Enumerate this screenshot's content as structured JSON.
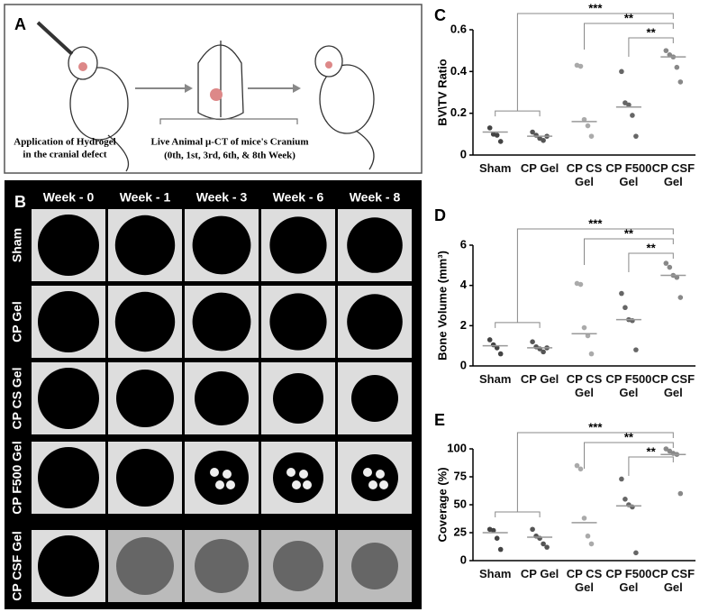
{
  "panel_a": {
    "label": "A",
    "left_caption": [
      "Application of Hydrogel",
      "in the cranial defect"
    ],
    "center_caption": [
      "Live Animal μ-CT of mice's Cranium",
      "(0th, 1st, 3rd, 6th, & 8th Week)"
    ]
  },
  "panel_b": {
    "label": "B",
    "columns": [
      "Week - 0",
      "Week - 1",
      "Week - 3",
      "Week - 6",
      "Week - 8"
    ],
    "rows": [
      "Sham",
      "CP Gel",
      "CP CS Gel",
      "CP F500 Gel",
      "CP CSF Gel"
    ]
  },
  "chart_data": [
    {
      "type": "strip",
      "panel": "C",
      "y_label": "BV\\TV Ratio",
      "categories": [
        "Sham",
        "CP Gel",
        "CP CS Gel",
        "CP F500 Gel",
        "CP CSF Gel"
      ],
      "points": [
        [
          0.13,
          0.1,
          0.095,
          0.065
        ],
        [
          0.11,
          0.095,
          0.08,
          0.07,
          0.09
        ],
        [
          0.43,
          0.425,
          0.17,
          0.14,
          0.09
        ],
        [
          0.4,
          0.25,
          0.24,
          0.19,
          0.09
        ],
        [
          0.5,
          0.48,
          0.47,
          0.42,
          0.35
        ]
      ],
      "medians": [
        0.11,
        0.09,
        0.16,
        0.23,
        0.47
      ],
      "point_colors": [
        "#444444",
        "#555555",
        "#aaaaaa",
        "#666666",
        "#888888"
      ],
      "median_color": "#999999",
      "ylim": [
        0,
        0.6
      ],
      "yticks": [
        0,
        0.2,
        0.4,
        0.6
      ],
      "significance": [
        "***",
        "**",
        "**"
      ]
    },
    {
      "type": "strip",
      "panel": "D",
      "y_label": "Bone Volume (mm³)",
      "categories": [
        "Sham",
        "CP Gel",
        "CP CS Gel",
        "CP F500 Gel",
        "CP CSF Gel"
      ],
      "points": [
        [
          1.3,
          1.05,
          0.9,
          0.6
        ],
        [
          1.2,
          0.95,
          0.85,
          0.7,
          0.9
        ],
        [
          4.1,
          4.05,
          1.9,
          1.5,
          0.6
        ],
        [
          3.6,
          2.9,
          2.3,
          2.25,
          0.8
        ],
        [
          5.1,
          4.9,
          4.5,
          4.4,
          3.4
        ]
      ],
      "medians": [
        1.0,
        0.9,
        1.6,
        2.3,
        4.5
      ],
      "point_colors": [
        "#444444",
        "#555555",
        "#aaaaaa",
        "#666666",
        "#888888"
      ],
      "median_color": "#999999",
      "ylim": [
        0,
        6
      ],
      "yticks": [
        0,
        2,
        4,
        6
      ],
      "significance": [
        "***",
        "**",
        "**"
      ]
    },
    {
      "type": "strip",
      "panel": "E",
      "y_label": "Coverage (%)",
      "categories": [
        "Sham",
        "CP Gel",
        "CP CS Gel",
        "CP F500 Gel",
        "CP CSF Gel"
      ],
      "points": [
        [
          28,
          27,
          20,
          10
        ],
        [
          28,
          22,
          20,
          15,
          12
        ],
        [
          85,
          82,
          38,
          22,
          15
        ],
        [
          73,
          55,
          50,
          48,
          7
        ],
        [
          100,
          98,
          96,
          95,
          60
        ]
      ],
      "medians": [
        25,
        21,
        34,
        49,
        95
      ],
      "point_colors": [
        "#444444",
        "#555555",
        "#aaaaaa",
        "#666666",
        "#888888"
      ],
      "median_color": "#999999",
      "ylim": [
        0,
        100
      ],
      "yticks": [
        0,
        25,
        50,
        75,
        100
      ],
      "significance": [
        "***",
        "**",
        "**"
      ]
    }
  ]
}
